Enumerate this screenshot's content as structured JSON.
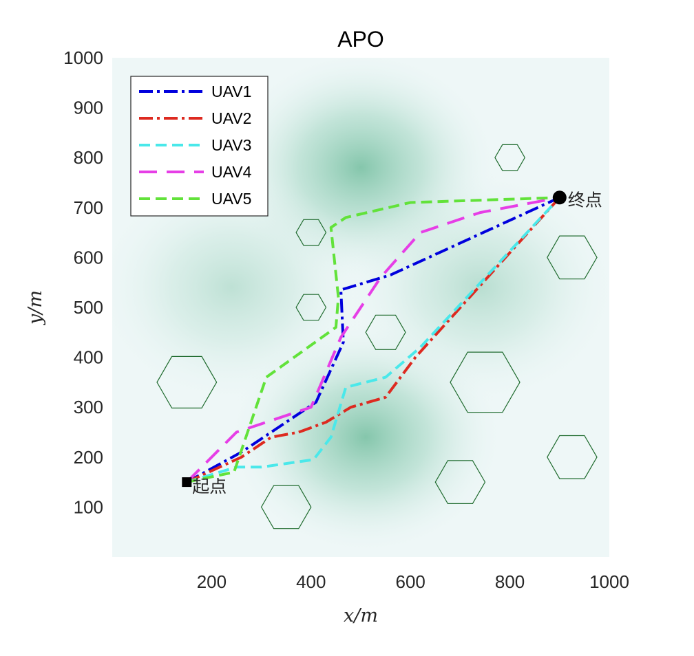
{
  "chart_data": {
    "type": "line",
    "title": "APO",
    "xlabel": "x/m",
    "ylabel": "y/m",
    "xlim": [
      0,
      1000
    ],
    "ylim": [
      0,
      1000
    ],
    "x_ticks": [
      200,
      400,
      600,
      800,
      1000
    ],
    "y_ticks": [
      100,
      200,
      300,
      400,
      500,
      600,
      700,
      800,
      900,
      1000
    ],
    "grid": false,
    "legend_position": "top-left",
    "background_terrain": [
      {
        "x": 500,
        "y": 780,
        "strength": 0.55
      },
      {
        "x": 510,
        "y": 240,
        "strength": 0.55
      },
      {
        "x": 240,
        "y": 540,
        "strength": 0.25
      },
      {
        "x": 740,
        "y": 540,
        "strength": 0.28
      }
    ],
    "start": {
      "x": 150,
      "y": 150,
      "label": "起点"
    },
    "end": {
      "x": 900,
      "y": 720,
      "label": "终点"
    },
    "obstacles": [
      {
        "x": 800,
        "y": 800,
        "r": 30
      },
      {
        "x": 400,
        "y": 650,
        "r": 30
      },
      {
        "x": 925,
        "y": 600,
        "r": 50
      },
      {
        "x": 400,
        "y": 500,
        "r": 30
      },
      {
        "x": 550,
        "y": 450,
        "r": 40
      },
      {
        "x": 150,
        "y": 350,
        "r": 60
      },
      {
        "x": 750,
        "y": 350,
        "r": 70
      },
      {
        "x": 925,
        "y": 200,
        "r": 50
      },
      {
        "x": 700,
        "y": 150,
        "r": 50
      },
      {
        "x": 350,
        "y": 100,
        "r": 50
      }
    ],
    "series": [
      {
        "name": "UAV1",
        "color": "#0000dd",
        "dash": "dashdot",
        "x": [
          150,
          260,
          410,
          465,
          460,
          560,
          900
        ],
        "y": [
          150,
          210,
          310,
          430,
          535,
          565,
          720
        ]
      },
      {
        "name": "UAV2",
        "color": "#dd2a20",
        "dash": "dashdot",
        "x": [
          150,
          260,
          320,
          375,
          430,
          480,
          550,
          610,
          900
        ],
        "y": [
          150,
          200,
          240,
          250,
          270,
          300,
          320,
          400,
          720
        ]
      },
      {
        "name": "UAV3",
        "color": "#4ae8ea",
        "dash": "dash",
        "x": [
          150,
          250,
          300,
          405,
          440,
          470,
          550,
          620,
          900
        ],
        "y": [
          150,
          180,
          180,
          195,
          240,
          340,
          360,
          420,
          720
        ]
      },
      {
        "name": "UAV4",
        "color": "#e63ee6",
        "dash": "longdash",
        "x": [
          150,
          250,
          400,
          460,
          540,
          620,
          740,
          900
        ],
        "y": [
          150,
          250,
          300,
          440,
          560,
          650,
          690,
          720
        ]
      },
      {
        "name": "UAV5",
        "color": "#62e23a",
        "dash": "dash",
        "x": [
          150,
          245,
          310,
          450,
          455,
          440,
          470,
          600,
          900
        ],
        "y": [
          150,
          170,
          360,
          460,
          520,
          660,
          680,
          710,
          720
        ]
      }
    ]
  }
}
